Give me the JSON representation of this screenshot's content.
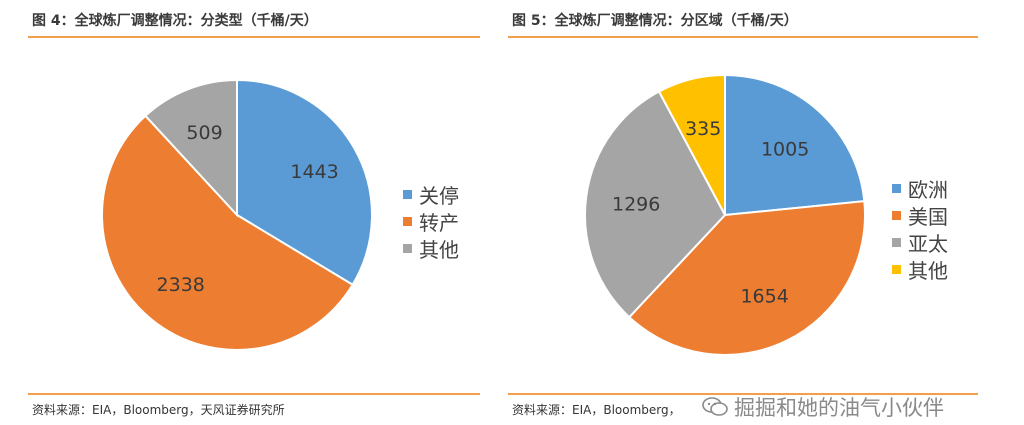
{
  "left_panel": {
    "title": "图 4：全球炼厂调整情况：分类型（千桶/天）",
    "source": "资料来源：EIA，Bloomberg，天风证券研究所"
  },
  "right_panel": {
    "title": "图 5：全球炼厂调整情况：分区域（千桶/天）",
    "source": "资料来源：EIA，Bloomberg，"
  },
  "watermark": {
    "text": "掘掘和她的油气小伙伴",
    "icon": "wechat-icon"
  },
  "chart_data": [
    {
      "type": "pie",
      "title": "全球炼厂调整情况：分类型（千桶/天）",
      "categories": [
        "关停",
        "转产",
        "其他"
      ],
      "values": [
        1443,
        2338,
        509
      ],
      "colors": [
        "#5b9bd5",
        "#ed7d31",
        "#a5a5a5"
      ],
      "start": "12 o'clock, clockwise",
      "legend": "right"
    },
    {
      "type": "pie",
      "title": "全球炼厂调整情况：分区域（千桶/天）",
      "categories": [
        "欧洲",
        "美国",
        "亚太",
        "其他"
      ],
      "values": [
        1005,
        1654,
        1296,
        335
      ],
      "colors": [
        "#5b9bd5",
        "#ed7d31",
        "#a5a5a5",
        "#ffc000"
      ],
      "start": "12 o'clock, clockwise",
      "legend": "right"
    }
  ]
}
